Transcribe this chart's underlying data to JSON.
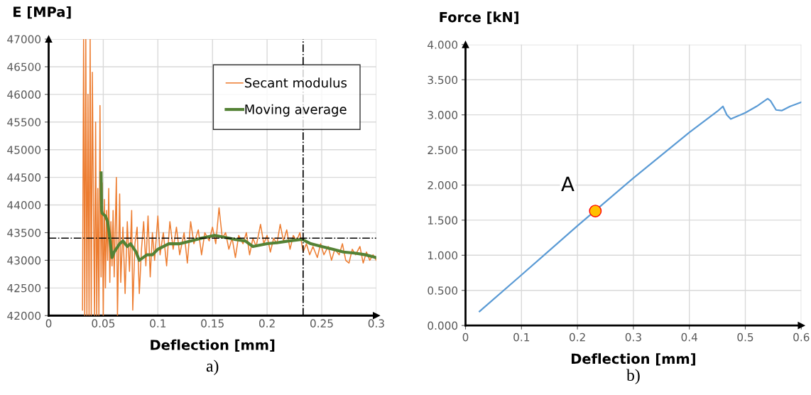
{
  "chart_data": [
    {
      "type": "line",
      "xlabel": "Deflection [mm]",
      "ylabel": "E [MPa]",
      "xlim": [
        0,
        0.3
      ],
      "ylim": [
        42000,
        47000
      ],
      "xticks": [
        0,
        0.05,
        0.1,
        0.15,
        0.2,
        0.25,
        0.3
      ],
      "yticks": [
        42000,
        42500,
        43000,
        43500,
        44000,
        44500,
        45000,
        45500,
        46000,
        46500,
        47000
      ],
      "grid": true,
      "legend": "top right",
      "annotations": [
        "a)"
      ],
      "ref_lines": [
        {
          "axis": "y",
          "value": 43400,
          "color": "#000000",
          "line_style": "dashdot"
        },
        {
          "axis": "x",
          "value": 0.233,
          "color": "#000000",
          "line_style": "dashdot"
        }
      ],
      "series": [
        {
          "name": "Secant modulus",
          "color": "#ed7d31",
          "x": [
            0.031,
            0.032,
            0.033,
            0.034,
            0.035,
            0.036,
            0.037,
            0.038,
            0.039,
            0.04,
            0.041,
            0.042,
            0.043,
            0.044,
            0.045,
            0.046,
            0.047,
            0.048,
            0.049,
            0.05,
            0.051,
            0.052,
            0.053,
            0.054,
            0.055,
            0.056,
            0.057,
            0.058,
            0.059,
            0.06,
            0.062,
            0.063,
            0.065,
            0.066,
            0.068,
            0.07,
            0.072,
            0.074,
            0.076,
            0.077,
            0.079,
            0.081,
            0.083,
            0.085,
            0.087,
            0.089,
            0.091,
            0.093,
            0.095,
            0.097,
            0.1,
            0.102,
            0.105,
            0.108,
            0.111,
            0.114,
            0.117,
            0.12,
            0.124,
            0.127,
            0.13,
            0.133,
            0.137,
            0.14,
            0.143,
            0.147,
            0.15,
            0.153,
            0.156,
            0.159,
            0.162,
            0.165,
            0.168,
            0.171,
            0.174,
            0.178,
            0.181,
            0.184,
            0.187,
            0.19,
            0.194,
            0.197,
            0.2,
            0.203,
            0.206,
            0.209,
            0.212,
            0.215,
            0.218,
            0.221,
            0.224,
            0.227,
            0.23,
            0.233,
            0.236,
            0.239,
            0.242,
            0.246,
            0.249,
            0.252,
            0.256,
            0.259,
            0.262,
            0.266,
            0.269,
            0.272,
            0.275,
            0.278,
            0.281,
            0.285,
            0.288,
            0.291,
            0.294,
            0.297,
            0.3
          ],
          "values": [
            42100,
            47000,
            42000,
            47000,
            42000,
            46000,
            42000,
            47000,
            42000,
            46400,
            44000,
            42000,
            45500,
            42000,
            44300,
            42000,
            45800,
            42700,
            44400,
            42000,
            44100,
            42500,
            43900,
            43000,
            44300,
            42600,
            43700,
            42900,
            43900,
            42700,
            44500,
            42000,
            44200,
            42600,
            43600,
            42400,
            43700,
            42800,
            43900,
            42100,
            43300,
            43600,
            42400,
            43200,
            43700,
            42900,
            43800,
            42700,
            43500,
            43000,
            43800,
            43100,
            43500,
            42900,
            43700,
            43200,
            43600,
            43100,
            43500,
            42950,
            43700,
            43300,
            43550,
            43100,
            43500,
            43350,
            43600,
            43300,
            43950,
            43400,
            43500,
            43200,
            43400,
            43050,
            43450,
            43300,
            43500,
            43100,
            43400,
            43250,
            43650,
            43300,
            43450,
            43150,
            43400,
            43300,
            43650,
            43350,
            43550,
            43200,
            43450,
            43350,
            43500,
            43150,
            43300,
            43100,
            43250,
            43050,
            43300,
            43100,
            43250,
            43000,
            43200,
            43100,
            43300,
            43000,
            42950,
            43200,
            43100,
            43250,
            42950,
            43150,
            43000,
            43100,
            43000
          ]
        },
        {
          "name": "Moving average",
          "color": "#548235",
          "x": [
            0.048,
            0.0485,
            0.049,
            0.052,
            0.054,
            0.056,
            0.058,
            0.06,
            0.065,
            0.068,
            0.072,
            0.075,
            0.08,
            0.083,
            0.09,
            0.095,
            0.1,
            0.11,
            0.12,
            0.13,
            0.14,
            0.152,
            0.16,
            0.17,
            0.18,
            0.187,
            0.2,
            0.21,
            0.22,
            0.232,
            0.24,
            0.25,
            0.26,
            0.27,
            0.28,
            0.29,
            0.3
          ],
          "values": [
            44580,
            43900,
            43850,
            43800,
            43700,
            43400,
            43050,
            43150,
            43300,
            43350,
            43250,
            43300,
            43150,
            43000,
            43100,
            43100,
            43200,
            43300,
            43300,
            43350,
            43400,
            43450,
            43420,
            43380,
            43350,
            43250,
            43300,
            43320,
            43350,
            43380,
            43300,
            43250,
            43200,
            43150,
            43130,
            43100,
            43050
          ]
        }
      ]
    },
    {
      "type": "line",
      "xlabel": "Deflection [mm]",
      "ylabel": "Force [kN]",
      "xlim": [
        0,
        0.6
      ],
      "ylim": [
        0,
        4
      ],
      "xticks": [
        0,
        0.1,
        0.2,
        0.3,
        0.4,
        0.5,
        0.6
      ],
      "yticks": [
        {
          "value": 0,
          "label": "0.000"
        },
        {
          "value": 0.5,
          "label": "0.500"
        },
        {
          "value": 1,
          "label": "1.000"
        },
        {
          "value": 1.5,
          "label": "1.500"
        },
        {
          "value": 2,
          "label": "2.000"
        },
        {
          "value": 2.5,
          "label": "2.500"
        },
        {
          "value": 3,
          "label": "3.000"
        },
        {
          "value": 3.5,
          "label": "3.500"
        },
        {
          "value": 4,
          "label": "4.000"
        }
      ],
      "grid": true,
      "annotations": [
        {
          "text": "A",
          "x": 0.232,
          "y": 1.63
        },
        "b)"
      ],
      "series": [
        {
          "color": "#5b9bd5",
          "x": [
            0.025,
            0.1,
            0.2,
            0.3,
            0.4,
            0.45,
            0.46,
            0.467,
            0.474,
            0.5,
            0.52,
            0.54,
            0.545,
            0.555,
            0.565,
            0.58,
            0.6
          ],
          "values": [
            0.2,
            0.72,
            1.42,
            2.1,
            2.75,
            3.05,
            3.12,
            3.0,
            2.94,
            3.03,
            3.12,
            3.23,
            3.2,
            3.07,
            3.06,
            3.12,
            3.18
          ]
        },
        {
          "type": "scatter",
          "color": "#ffc000",
          "x": [
            0.232
          ],
          "values": [
            1.63
          ]
        }
      ]
    }
  ]
}
